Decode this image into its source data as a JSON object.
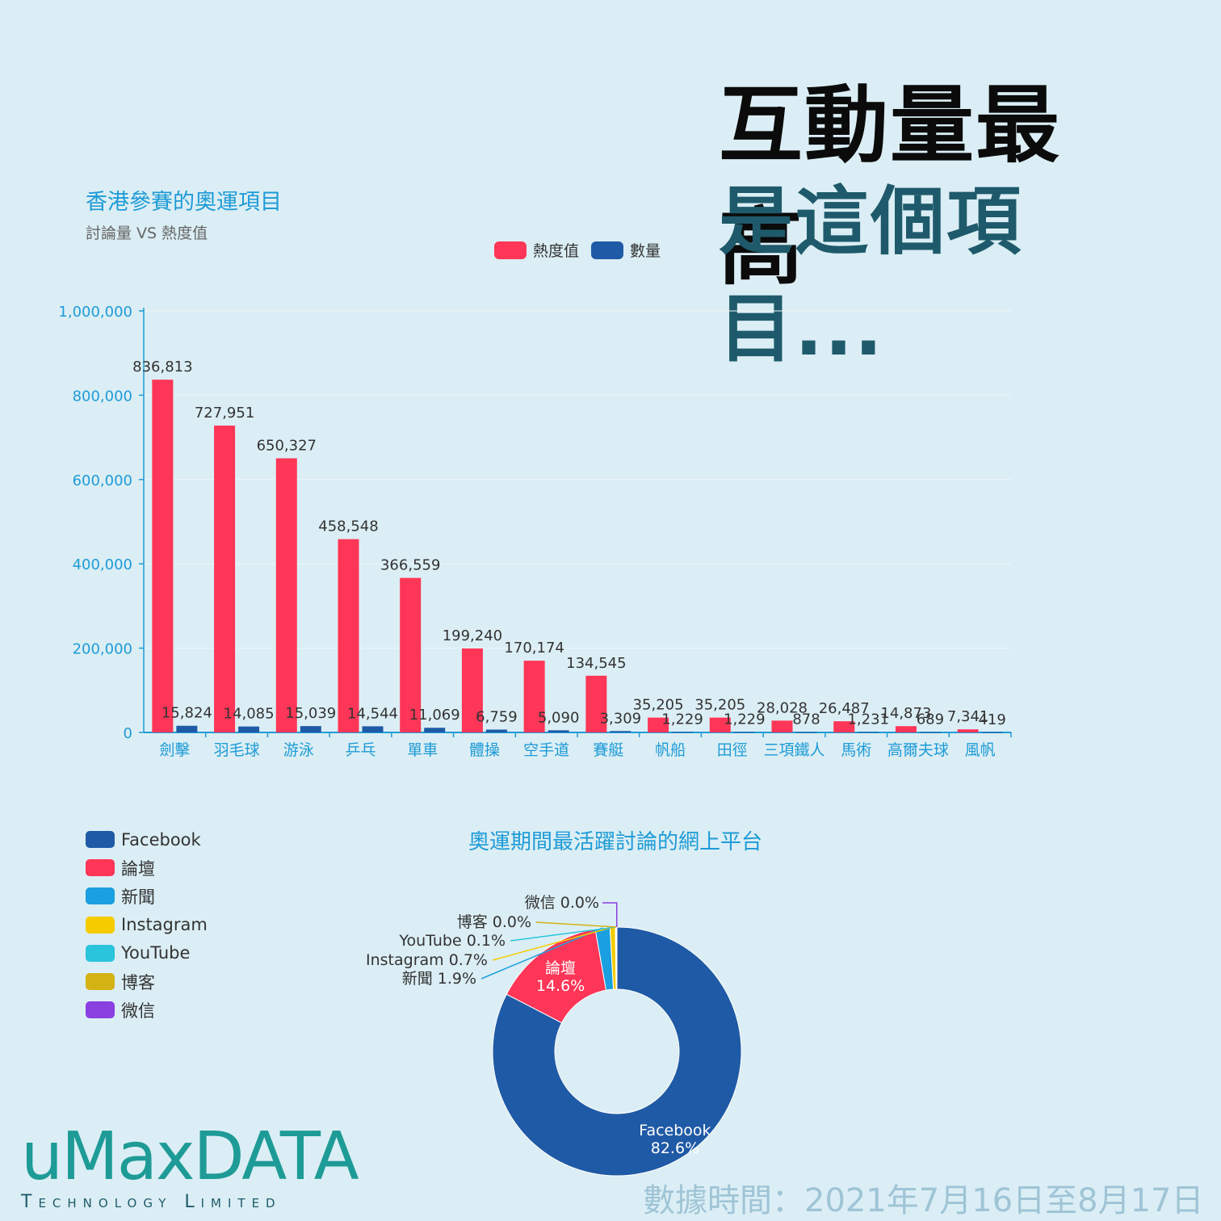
{
  "headline": {
    "line1": "互動量最高",
    "line2": "是這個項目..."
  },
  "bar_section": {
    "title": "香港參賽的奧運項目",
    "subtitle": "討論量 VS 熱度值",
    "legend": [
      {
        "label": "熱度值",
        "color": "#ff3657"
      },
      {
        "label": "數量",
        "color": "#1f5aa6"
      }
    ]
  },
  "pie_section": {
    "title": "奧運期間最活躍討論的網上平台",
    "legend": [
      {
        "label": "Facebook",
        "color": "#1f5aa6"
      },
      {
        "label": "論壇",
        "color": "#ff3657"
      },
      {
        "label": "新聞",
        "color": "#1a9fe0"
      },
      {
        "label": "Instagram",
        "color": "#f5cc00"
      },
      {
        "label": "YouTube",
        "color": "#2ac4dc"
      },
      {
        "label": "博客",
        "color": "#d4b214"
      },
      {
        "label": "微信",
        "color": "#8a3fe0"
      }
    ]
  },
  "chart_data": [
    {
      "type": "bar",
      "title": "香港參賽的奧運項目",
      "subtitle": "討論量 VS 熱度值",
      "categories": [
        "劍擊",
        "羽毛球",
        "游泳",
        "乒乓",
        "單車",
        "體操",
        "空手道",
        "賽艇",
        "帆船",
        "田徑",
        "三項鐵人",
        "馬術",
        "高爾夫球",
        "風帆"
      ],
      "series": [
        {
          "name": "熱度值",
          "color": "#ff3657",
          "values": [
            836813,
            727951,
            650327,
            458548,
            366559,
            199240,
            170174,
            134545,
            35205,
            35205,
            28028,
            26487,
            14873,
            7341
          ]
        },
        {
          "name": "數量",
          "color": "#1f5aa6",
          "values": [
            15824,
            14085,
            15039,
            14544,
            11069,
            6759,
            5090,
            3309,
            1229,
            1229,
            878,
            1231,
            689,
            419
          ]
        }
      ],
      "value_labels": {
        "熱度值": [
          "836,813",
          "727,951",
          "650,327",
          "458,548",
          "366,559",
          "199,240",
          "170,174",
          "134,545",
          "35,205",
          "35,205",
          "28,028",
          "26,487",
          "14,873",
          "7,341"
        ],
        "數量": [
          "15,824",
          "14,085",
          "15,039",
          "14,544",
          "11,069",
          "6,759",
          "5,090",
          "3,309",
          "1,229",
          "1,229",
          "878",
          "1,231",
          "689",
          "419"
        ]
      },
      "ylim": [
        0,
        1000000
      ],
      "yticks": [
        0,
        200000,
        400000,
        600000,
        800000,
        1000000
      ],
      "ytick_labels": [
        "0",
        "200,000",
        "400,000",
        "600,000",
        "800,000",
        "1,000,000"
      ],
      "grid": true,
      "legend_position": "top-center"
    },
    {
      "type": "pie",
      "title": "奧運期間最活躍討論的網上平台",
      "donut": true,
      "slices": [
        {
          "label": "Facebook",
          "value": 82.6,
          "text": "82.6%",
          "color": "#1f5aa6"
        },
        {
          "label": "論壇",
          "value": 14.6,
          "text": "14.6%",
          "color": "#ff3657"
        },
        {
          "label": "新聞",
          "value": 1.9,
          "text": "1.9%",
          "color": "#1a9fe0"
        },
        {
          "label": "Instagram",
          "value": 0.7,
          "text": "0.7%",
          "color": "#f5cc00"
        },
        {
          "label": "YouTube",
          "value": 0.1,
          "text": "0.1%",
          "color": "#2ac4dc"
        },
        {
          "label": "博客",
          "value": 0.0,
          "text": "0.0%",
          "color": "#d4b214"
        },
        {
          "label": "微信",
          "value": 0.0,
          "text": "0.0%",
          "color": "#8a3fe0"
        }
      ],
      "legend_position": "left"
    }
  ],
  "brand": {
    "logo_main": "uMaxDATA",
    "logo_sub": "Technology Limited"
  },
  "date_note": "數據時間：2021年7月16日至8月17日"
}
